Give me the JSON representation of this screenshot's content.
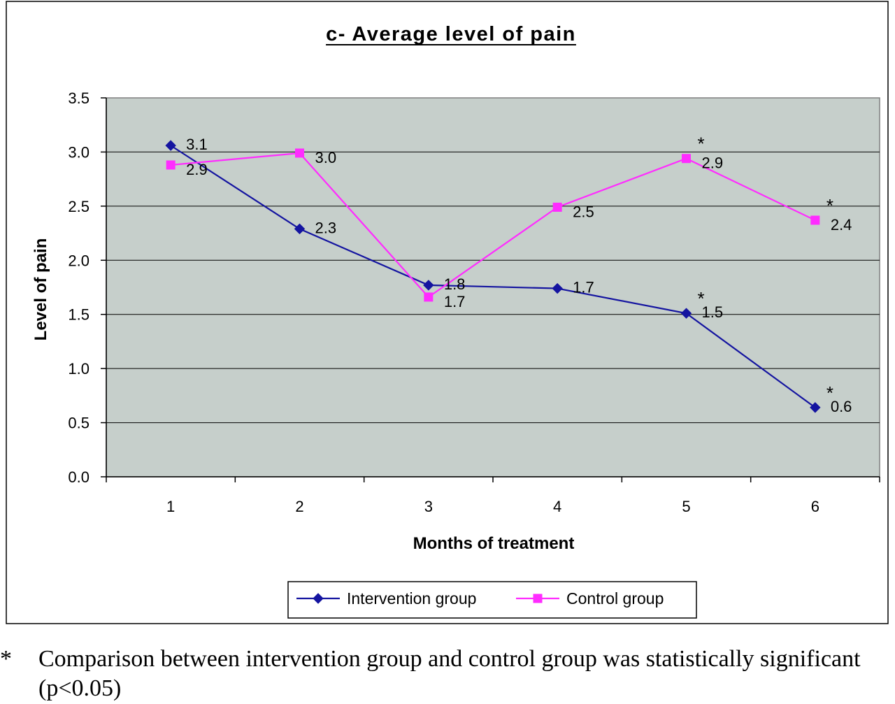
{
  "chart_data": {
    "type": "line",
    "title": "c- Average level of pain",
    "xlabel": "Months of treatment",
    "ylabel": "Level of pain",
    "categories": [
      "1",
      "2",
      "3",
      "4",
      "5",
      "6"
    ],
    "ylim": [
      0,
      3.5
    ],
    "yticks": [
      "0.0",
      "0.5",
      "1.0",
      "1.5",
      "2.0",
      "2.5",
      "3.0",
      "3.5"
    ],
    "grid": true,
    "legend_position": "bottom",
    "plot_background": "#c6cfcb",
    "series": [
      {
        "name": "Intervention group",
        "color": "#1414a0",
        "marker": "diamond",
        "values": [
          3.06,
          2.29,
          1.77,
          1.74,
          1.51,
          0.64
        ],
        "labels": [
          "3.1",
          "2.3",
          "1.8",
          "1.7",
          "1.5",
          "0.6"
        ],
        "significant": [
          false,
          false,
          false,
          false,
          true,
          true
        ]
      },
      {
        "name": "Control group",
        "color": "#ff2cff",
        "marker": "square",
        "values": [
          2.88,
          2.99,
          1.66,
          2.49,
          2.94,
          2.37
        ],
        "labels": [
          "2.9",
          "3.0",
          "1.7",
          "2.5",
          "2.9",
          "2.4"
        ],
        "significant": [
          false,
          false,
          false,
          false,
          true,
          true
        ]
      }
    ],
    "significance_marker": "*"
  },
  "footnote": {
    "marker": "*",
    "text": "Comparison between intervention group and control group was statistically significant (p<0.05)"
  }
}
